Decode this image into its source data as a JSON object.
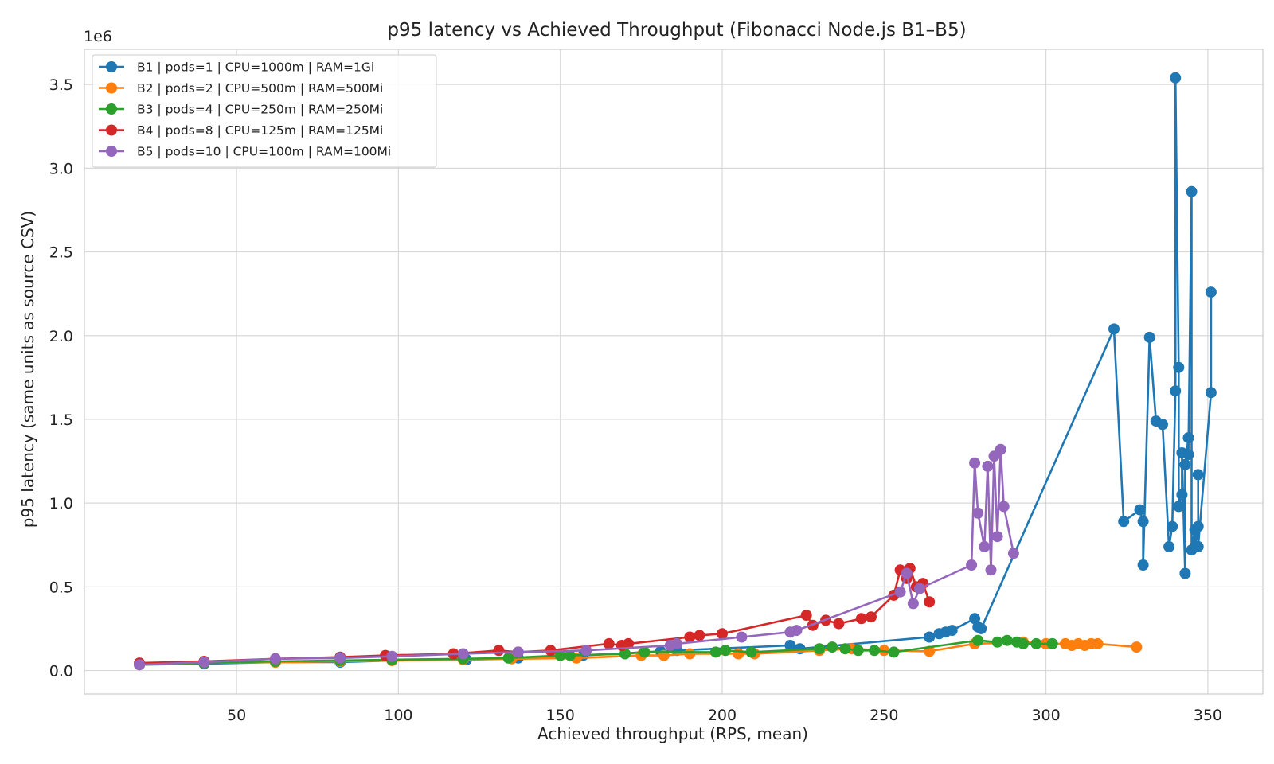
{
  "chart_data": {
    "type": "line",
    "title": "p95 latency vs Achieved Throughput (Fibonacci Node.js B1–B5)",
    "xlabel": "Achieved throughput (RPS, mean)",
    "ylabel": "p95 latency (same units as source CSV)",
    "y_offset_label": "1e6",
    "xlim": [
      3,
      367
    ],
    "ylim": [
      -0.14,
      3.71
    ],
    "x_ticks": [
      50,
      100,
      150,
      200,
      250,
      300,
      350
    ],
    "y_ticks": [
      0.0,
      0.5,
      1.0,
      1.5,
      2.0,
      2.5,
      3.0,
      3.5
    ],
    "y_tick_labels": [
      "0.0",
      "0.5",
      "1.0",
      "1.5",
      "2.0",
      "2.5",
      "3.0",
      "3.5"
    ],
    "y_scale_note": "values in units of 1e6",
    "grid": true,
    "legend_position": "upper-left",
    "series": [
      {
        "name": "B1 | pods=1 | CPU=1000m | RAM=1Gi",
        "color": "#1f77b4",
        "x": [
          20,
          40,
          62,
          82,
          98,
          121,
          137,
          157,
          181,
          186,
          221,
          224,
          264,
          267,
          269,
          271,
          278,
          279,
          280,
          321,
          324,
          329,
          330,
          330,
          332,
          334,
          336,
          338,
          339,
          340,
          340,
          341,
          341,
          342,
          342,
          343,
          343,
          344,
          344,
          345,
          345,
          346,
          346,
          347,
          347,
          347,
          351,
          351
        ],
        "y": [
          0.035,
          0.04,
          0.05,
          0.05,
          0.06,
          0.065,
          0.075,
          0.09,
          0.115,
          0.12,
          0.15,
          0.13,
          0.2,
          0.22,
          0.23,
          0.24,
          0.31,
          0.26,
          0.25,
          2.04,
          0.89,
          0.96,
          0.89,
          0.63,
          1.99,
          1.49,
          1.47,
          0.74,
          0.86,
          1.67,
          3.54,
          1.81,
          0.98,
          1.05,
          1.3,
          0.58,
          1.23,
          1.39,
          1.29,
          2.86,
          0.72,
          0.84,
          0.74,
          0.86,
          1.17,
          0.74,
          1.66,
          2.26
        ]
      },
      {
        "name": "B2 | pods=2 | CPU=500m | RAM=500Mi",
        "color": "#ff7f0e",
        "x": [
          20,
          40,
          62,
          82,
          98,
          120,
          135,
          155,
          175,
          182,
          190,
          205,
          210,
          230,
          240,
          250,
          264,
          278,
          293,
          300,
          306,
          308,
          310,
          312,
          314,
          316,
          328
        ],
        "y": [
          0.035,
          0.045,
          0.05,
          0.055,
          0.06,
          0.065,
          0.07,
          0.075,
          0.09,
          0.09,
          0.1,
          0.1,
          0.1,
          0.12,
          0.13,
          0.12,
          0.115,
          0.16,
          0.17,
          0.16,
          0.16,
          0.15,
          0.16,
          0.15,
          0.16,
          0.16,
          0.14
        ]
      },
      {
        "name": "B3 | pods=4 | CPU=250m | RAM=250Mi",
        "color": "#2ca02c",
        "x": [
          20,
          40,
          62,
          82,
          98,
          120,
          134,
          150,
          153,
          170,
          176,
          198,
          201,
          209,
          230,
          234,
          238,
          242,
          247,
          253,
          279,
          285,
          288,
          291,
          293,
          297,
          302
        ],
        "y": [
          0.035,
          0.045,
          0.055,
          0.06,
          0.065,
          0.07,
          0.075,
          0.09,
          0.09,
          0.1,
          0.11,
          0.11,
          0.12,
          0.11,
          0.13,
          0.14,
          0.13,
          0.12,
          0.12,
          0.11,
          0.18,
          0.17,
          0.18,
          0.17,
          0.16,
          0.16,
          0.16
        ]
      },
      {
        "name": "B4 | pods=8 | CPU=125m | RAM=125Mi",
        "color": "#d62728",
        "x": [
          20,
          40,
          62,
          82,
          96,
          117,
          131,
          137,
          147,
          165,
          169,
          171,
          190,
          193,
          200,
          226,
          228,
          232,
          236,
          243,
          246,
          253,
          255,
          257,
          258,
          260,
          262,
          264
        ],
        "y": [
          0.045,
          0.055,
          0.07,
          0.08,
          0.09,
          0.1,
          0.12,
          0.11,
          0.12,
          0.16,
          0.15,
          0.16,
          0.2,
          0.21,
          0.22,
          0.33,
          0.27,
          0.3,
          0.28,
          0.31,
          0.32,
          0.45,
          0.6,
          0.55,
          0.61,
          0.5,
          0.52,
          0.41
        ]
      },
      {
        "name": "B5 | pods=10 | CPU=100m | RAM=100Mi",
        "color": "#9467bd",
        "x": [
          20,
          40,
          62,
          82,
          98,
          120,
          137,
          158,
          184,
          186,
          206,
          221,
          223,
          255,
          257,
          259,
          261,
          277,
          278,
          279,
          281,
          282,
          283,
          284,
          285,
          286,
          287,
          290
        ],
        "y": [
          0.035,
          0.05,
          0.07,
          0.075,
          0.085,
          0.1,
          0.11,
          0.12,
          0.15,
          0.16,
          0.2,
          0.23,
          0.24,
          0.47,
          0.58,
          0.4,
          0.49,
          0.63,
          1.24,
          0.94,
          0.74,
          1.22,
          0.6,
          1.28,
          0.8,
          1.32,
          0.98,
          0.7
        ]
      }
    ]
  }
}
